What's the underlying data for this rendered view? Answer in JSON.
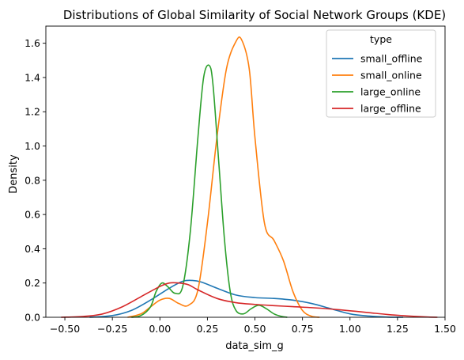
{
  "chart_data": {
    "type": "line",
    "title": "Distributions of Global Similarity of Social Network Groups (KDE)",
    "xlabel": "data_sim_g",
    "ylabel": "Density",
    "xlim": [
      -0.6,
      1.5
    ],
    "ylim": [
      0,
      1.7
    ],
    "xticks": [
      -0.5,
      -0.25,
      0.0,
      0.25,
      0.5,
      0.75,
      1.0,
      1.25,
      1.5
    ],
    "xtick_labels": [
      "−0.50",
      "−0.25",
      "0.00",
      "0.25",
      "0.50",
      "0.75",
      "1.00",
      "1.25",
      "1.50"
    ],
    "yticks": [
      0.0,
      0.2,
      0.4,
      0.6,
      0.8,
      1.0,
      1.2,
      1.4,
      1.6
    ],
    "ytick_labels": [
      "0.0",
      "0.2",
      "0.4",
      "0.6",
      "0.8",
      "1.0",
      "1.2",
      "1.4",
      "1.6"
    ],
    "grid": false,
    "legend": {
      "title": "type",
      "placement": "top-right"
    },
    "series": [
      {
        "name": "small_offline",
        "color": "#1f77b4",
        "x": [
          -0.37,
          -0.25,
          -0.15,
          -0.05,
          0.05,
          0.12,
          0.17,
          0.22,
          0.3,
          0.4,
          0.5,
          0.6,
          0.7,
          0.8,
          0.9,
          1.0,
          1.1,
          1.2,
          1.28
        ],
        "y": [
          0.0,
          0.01,
          0.04,
          0.1,
          0.17,
          0.21,
          0.215,
          0.205,
          0.17,
          0.13,
          0.115,
          0.11,
          0.1,
          0.08,
          0.05,
          0.02,
          0.007,
          0.001,
          0.0
        ]
      },
      {
        "name": "small_online",
        "color": "#ff7f0e",
        "x": [
          -0.17,
          -0.1,
          -0.05,
          0.0,
          0.05,
          0.1,
          0.15,
          0.2,
          0.25,
          0.3,
          0.35,
          0.4,
          0.43,
          0.47,
          0.5,
          0.55,
          0.6,
          0.65,
          0.7,
          0.75,
          0.8,
          0.84
        ],
        "y": [
          0.0,
          0.02,
          0.06,
          0.1,
          0.11,
          0.08,
          0.07,
          0.16,
          0.55,
          1.05,
          1.45,
          1.61,
          1.62,
          1.45,
          1.05,
          0.55,
          0.45,
          0.33,
          0.15,
          0.04,
          0.005,
          0.0
        ]
      },
      {
        "name": "large_online",
        "color": "#2ca02c",
        "x": [
          -0.15,
          -0.1,
          -0.05,
          -0.02,
          0.01,
          0.04,
          0.08,
          0.12,
          0.16,
          0.2,
          0.23,
          0.26,
          0.28,
          0.31,
          0.34,
          0.37,
          0.4,
          0.44,
          0.48,
          0.52,
          0.56,
          0.6,
          0.64,
          0.67
        ],
        "y": [
          0.0,
          0.01,
          0.06,
          0.15,
          0.2,
          0.18,
          0.14,
          0.18,
          0.5,
          1.05,
          1.4,
          1.47,
          1.35,
          0.9,
          0.45,
          0.15,
          0.04,
          0.02,
          0.05,
          0.07,
          0.05,
          0.02,
          0.005,
          0.0
        ]
      },
      {
        "name": "large_offline",
        "color": "#d62728",
        "x": [
          -0.52,
          -0.4,
          -0.3,
          -0.2,
          -0.1,
          0.0,
          0.05,
          0.1,
          0.15,
          0.2,
          0.3,
          0.4,
          0.5,
          0.6,
          0.7,
          0.8,
          0.9,
          1.0,
          1.1,
          1.2,
          1.3,
          1.4,
          1.46
        ],
        "y": [
          0.0,
          0.005,
          0.02,
          0.06,
          0.12,
          0.18,
          0.2,
          0.2,
          0.19,
          0.16,
          0.11,
          0.085,
          0.075,
          0.068,
          0.062,
          0.056,
          0.048,
          0.038,
          0.027,
          0.016,
          0.008,
          0.002,
          0.0
        ]
      }
    ]
  }
}
